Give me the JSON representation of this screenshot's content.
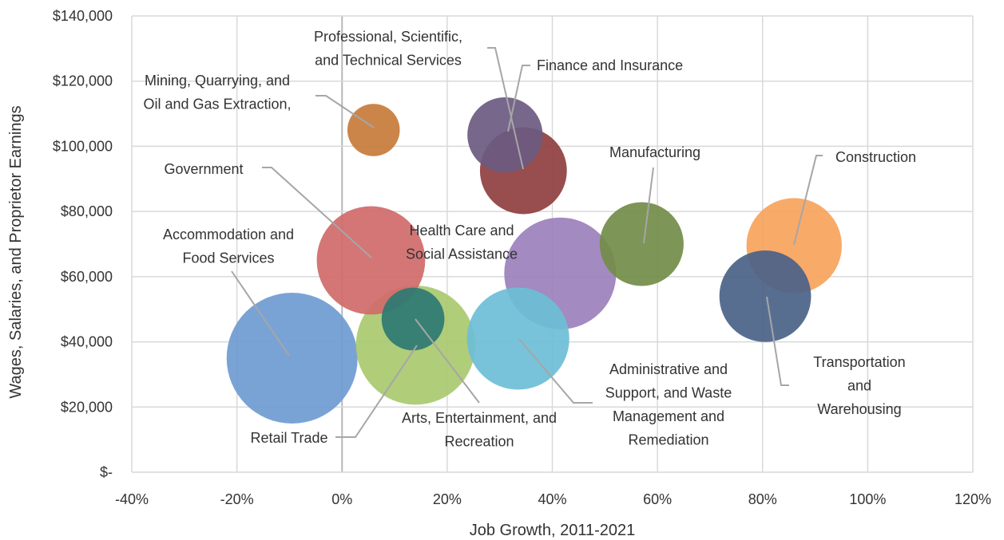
{
  "chart_data": {
    "type": "bubble",
    "title": "",
    "xlabel": "Job Growth, 2011-2021",
    "ylabel": "Wages, Salaries, and Proprietor Earnings",
    "xlim": [
      -0.4,
      1.2
    ],
    "ylim": [
      0,
      140000
    ],
    "x_tick_values": [
      -0.4,
      -0.2,
      0,
      0.2,
      0.4,
      0.6,
      0.8,
      1.0,
      1.2
    ],
    "x_ticks": [
      "-40%",
      "-20%",
      "0%",
      "20%",
      "40%",
      "60%",
      "80%",
      "100%",
      "120%"
    ],
    "y_tick_values": [
      0,
      20000,
      40000,
      60000,
      80000,
      100000,
      120000,
      140000
    ],
    "y_ticks": [
      "$-",
      "$20,000",
      "$40,000",
      "$60,000",
      "$80,000",
      "$100,000",
      "$120,000",
      "$140,000"
    ],
    "grid": true,
    "legend": "none",
    "points": [
      {
        "label": "Retail Trade",
        "x": -0.095,
        "y": 35000,
        "size": 1.0,
        "color": "#6f9bd1",
        "label_lines": [
          "Retail Trade"
        ]
      },
      {
        "label": "Accommodation and Food Services",
        "x": 0.14,
        "y": 39000,
        "size": 0.83,
        "color": "#a9c96f",
        "label_lines": [
          "Accommodation and",
          "Food Services"
        ]
      },
      {
        "label": "Government",
        "x": 0.055,
        "y": 65000,
        "size": 0.685,
        "color": "#d06a6a",
        "label_lines": [
          "Government"
        ]
      },
      {
        "label": "Arts, Entertainment, and Recreation",
        "x": 0.135,
        "y": 47000,
        "size": 0.23,
        "color": "#2e7a72",
        "label_lines": [
          "Arts, Entertainment, and",
          "Recreation"
        ]
      },
      {
        "label": "Administrative and Support, and Waste Management and Remediation",
        "x": 0.335,
        "y": 41000,
        "size": 0.61,
        "color": "#6dbed6",
        "label_lines": [
          "Administrative and",
          "Support, and Waste",
          "Management and",
          "Remediation"
        ]
      },
      {
        "label": "Health Care and Social Assistance",
        "x": 0.415,
        "y": 61000,
        "size": 0.73,
        "color": "#9b80bc",
        "label_lines": [
          "Health Care and",
          "Social Assistance"
        ]
      },
      {
        "label": "Mining, Quarrying, and Oil and Gas Extraction,",
        "x": 0.06,
        "y": 105000,
        "size": 0.16,
        "color": "#c87b3a",
        "label_lines": [
          "Mining, Quarrying, and",
          "Oil and Gas Extraction,"
        ]
      },
      {
        "label": "Professional, Scientific, and Technical Services",
        "x": 0.31,
        "y": 103500,
        "size": 0.33,
        "color": "#6b5a80",
        "label_lines": [
          "Professional, Scientific,",
          "and Technical Services"
        ]
      },
      {
        "label": "Finance and Insurance",
        "x": 0.345,
        "y": 92500,
        "size": 0.44,
        "color": "#8f3f3f",
        "label_lines": [
          "Finance and Insurance"
        ]
      },
      {
        "label": "Manufacturing",
        "x": 0.57,
        "y": 70000,
        "size": 0.41,
        "color": "#728c48",
        "label_lines": [
          "Manufacturing"
        ]
      },
      {
        "label": "Construction",
        "x": 0.86,
        "y": 69500,
        "size": 0.53,
        "color": "#f7a35c",
        "label_lines": [
          "Construction"
        ]
      },
      {
        "label": "Transportation and Warehousing",
        "x": 0.805,
        "y": 54000,
        "size": 0.49,
        "color": "#4a6288",
        "label_lines": [
          "Transportation",
          "and",
          "Warehousing"
        ]
      }
    ]
  }
}
